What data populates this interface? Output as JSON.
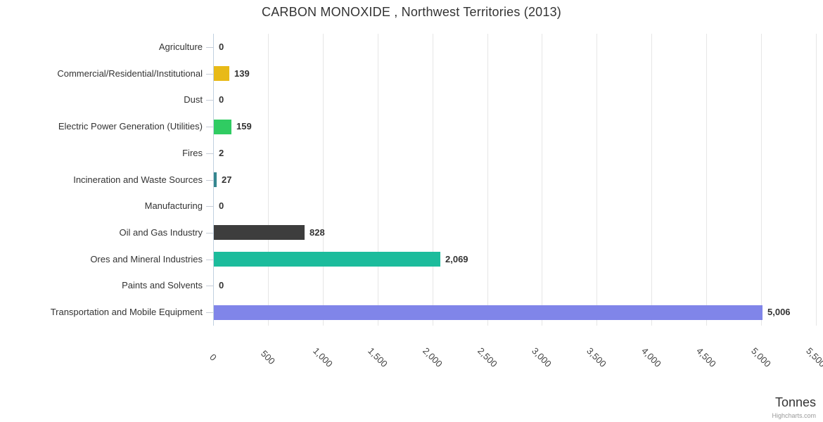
{
  "title": "CARBON MONOXIDE , Northwest Territories (2013)",
  "axis_title": "Tonnes",
  "credits": "Highcharts.com",
  "colors": {
    "gridline": "#e6e6e6",
    "axis_line": "#c0d0e0",
    "tick": "#c6ccd6",
    "title_text": "#333333",
    "label_text": "#333333",
    "credits_text": "#999999"
  },
  "chart_data": {
    "type": "bar",
    "title": "CARBON MONOXIDE , Northwest Territories (2013)",
    "xlabel": "",
    "ylabel": "Tonnes",
    "orientation": "horizontal",
    "grid": true,
    "legend": false,
    "value_axis_range": [
      0,
      5500
    ],
    "tick_interval": 500,
    "tick_labels": [
      "0",
      "500",
      "1,000",
      "1,500",
      "2,000",
      "2,500",
      "3,000",
      "3,500",
      "4,000",
      "4,500",
      "5,000",
      "5,500"
    ],
    "categories": [
      "Agriculture",
      "Commercial/Residential/Institutional",
      "Dust",
      "Electric Power Generation (Utilities)",
      "Fires",
      "Incineration and Waste Sources",
      "Manufacturing",
      "Oil and Gas Industry",
      "Ores and Mineral Industries",
      "Paints and Solvents",
      "Transportation and Mobile Equipment"
    ],
    "values": [
      0,
      139,
      0,
      159,
      2,
      27,
      0,
      828,
      2069,
      0,
      5006
    ],
    "value_labels": [
      "0",
      "139",
      "0",
      "159",
      "2",
      "27",
      "0",
      "828",
      "2,069",
      "0",
      "5,006"
    ],
    "bar_colors": [
      "#999999",
      "#e8ba17",
      "#999999",
      "#30cc62",
      "#999999",
      "#35868f",
      "#999999",
      "#3d3d3d",
      "#1cbc9c",
      "#999999",
      "#8085e9"
    ]
  }
}
